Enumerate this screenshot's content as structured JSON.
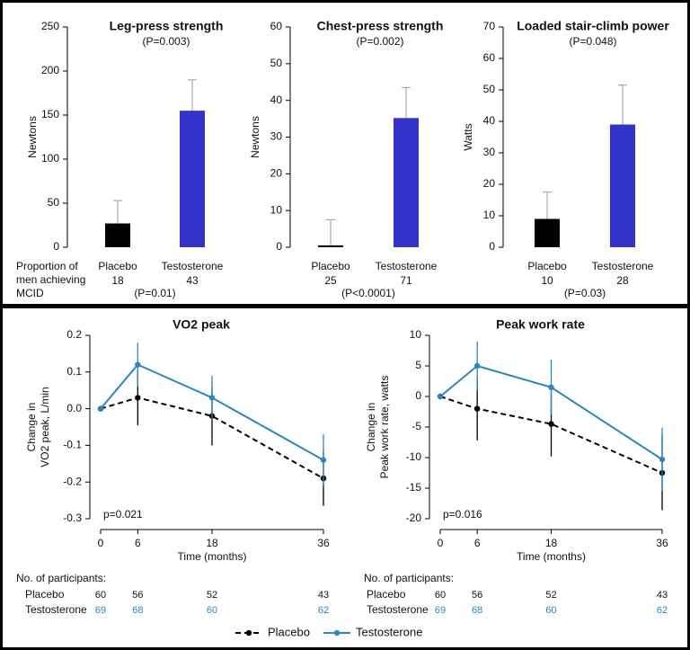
{
  "chart_data": [
    {
      "type": "bar",
      "title": "Leg-press strength",
      "subtitle": "(P=0.003)",
      "ylabel": "Newtons",
      "categories": [
        "Placebo",
        "Testosterone"
      ],
      "values": [
        27,
        155
      ],
      "errors": [
        26,
        35
      ],
      "colors": [
        "#000000",
        "#3333cc"
      ],
      "ylim": [
        0,
        250
      ],
      "yticks": [
        0,
        50,
        100,
        150,
        200,
        250
      ],
      "mcid_label": [
        "Proportion of",
        "men achieving",
        "MCID"
      ],
      "mcid_counts": [
        18,
        43
      ],
      "mcid_p": "(P=0.01)"
    },
    {
      "type": "bar",
      "title": "Chest-press strength",
      "subtitle": "(P=0.002)",
      "ylabel": "Newtons",
      "categories": [
        "Placebo",
        "Testosterone"
      ],
      "values": [
        0.5,
        35.2
      ],
      "errors": [
        7,
        8.3
      ],
      "colors": [
        "#000000",
        "#3333cc"
      ],
      "ylim": [
        0,
        60
      ],
      "yticks": [
        0,
        10,
        20,
        30,
        40,
        50,
        60
      ],
      "mcid_counts": [
        25,
        71
      ],
      "mcid_p": "(P<0.0001)"
    },
    {
      "type": "bar",
      "title": "Loaded stair-climb power",
      "subtitle": "(P=0.048)",
      "ylabel": "Watts",
      "categories": [
        "Placebo",
        "Testosterone"
      ],
      "values": [
        9,
        39
      ],
      "errors": [
        8.5,
        12.5
      ],
      "colors": [
        "#000000",
        "#3333cc"
      ],
      "ylim": [
        0,
        70
      ],
      "yticks": [
        0,
        10,
        20,
        30,
        40,
        50,
        60,
        70
      ],
      "mcid_counts": [
        10,
        28
      ],
      "mcid_p": "(P=0.03)"
    },
    {
      "type": "line",
      "title": "VO2 peak",
      "ylabel": [
        "Change in",
        "VO2 peak, L/min"
      ],
      "xlabel": "Time (months)",
      "x": [
        0,
        6,
        18,
        36
      ],
      "xlim": [
        0,
        36
      ],
      "xticks": [
        0,
        6,
        18,
        36
      ],
      "ylim": [
        -0.3,
        0.2
      ],
      "yticks": [
        -0.3,
        -0.2,
        -0.1,
        {
          "value": 0,
          "label": "0.0"
        },
        0.1,
        0.2
      ],
      "series": [
        {
          "name": "Placebo",
          "color": "#000000",
          "dashed": true,
          "values": [
            0,
            0.03,
            -0.02,
            -0.19
          ],
          "errors": [
            null,
            0.075,
            0.08,
            0.075
          ]
        },
        {
          "name": "Testosterone",
          "color": "#2b87bd",
          "dashed": false,
          "values": [
            0,
            0.12,
            0.03,
            -0.14
          ],
          "errors": [
            null,
            0.06,
            0.06,
            0.07
          ]
        }
      ],
      "annotation": "p=0.021",
      "table_title": "No. of participants:",
      "table": [
        [
          60,
          56,
          52,
          43
        ],
        [
          69,
          68,
          60,
          62
        ]
      ],
      "legend": "bottom"
    },
    {
      "type": "line",
      "title": "Peak work rate",
      "ylabel": [
        "Change in",
        "Peak work rate, watts"
      ],
      "xlabel": "Time (months)",
      "x": [
        0,
        6,
        18,
        36
      ],
      "xlim": [
        0,
        36
      ],
      "xticks": [
        0,
        6,
        18,
        36
      ],
      "ylim": [
        -20,
        10
      ],
      "yticks": [
        -20,
        -15,
        -10,
        -5,
        0,
        5,
        10
      ],
      "series": [
        {
          "name": "Placebo",
          "color": "#000000",
          "dashed": true,
          "values": [
            0,
            -2,
            -4.5,
            -12.5
          ],
          "errors": [
            null,
            5.2,
            5.3,
            6.1
          ]
        },
        {
          "name": "Testosterone",
          "color": "#2b87bd",
          "dashed": false,
          "values": [
            0,
            5,
            1.5,
            -10.3
          ],
          "errors": [
            null,
            4,
            4.5,
            5.2
          ]
        }
      ],
      "annotation": "p=0.016",
      "table_title": "No. of participants:",
      "table": [
        [
          60,
          56,
          52,
          43
        ],
        [
          69,
          68,
          60,
          62
        ]
      ]
    }
  ]
}
